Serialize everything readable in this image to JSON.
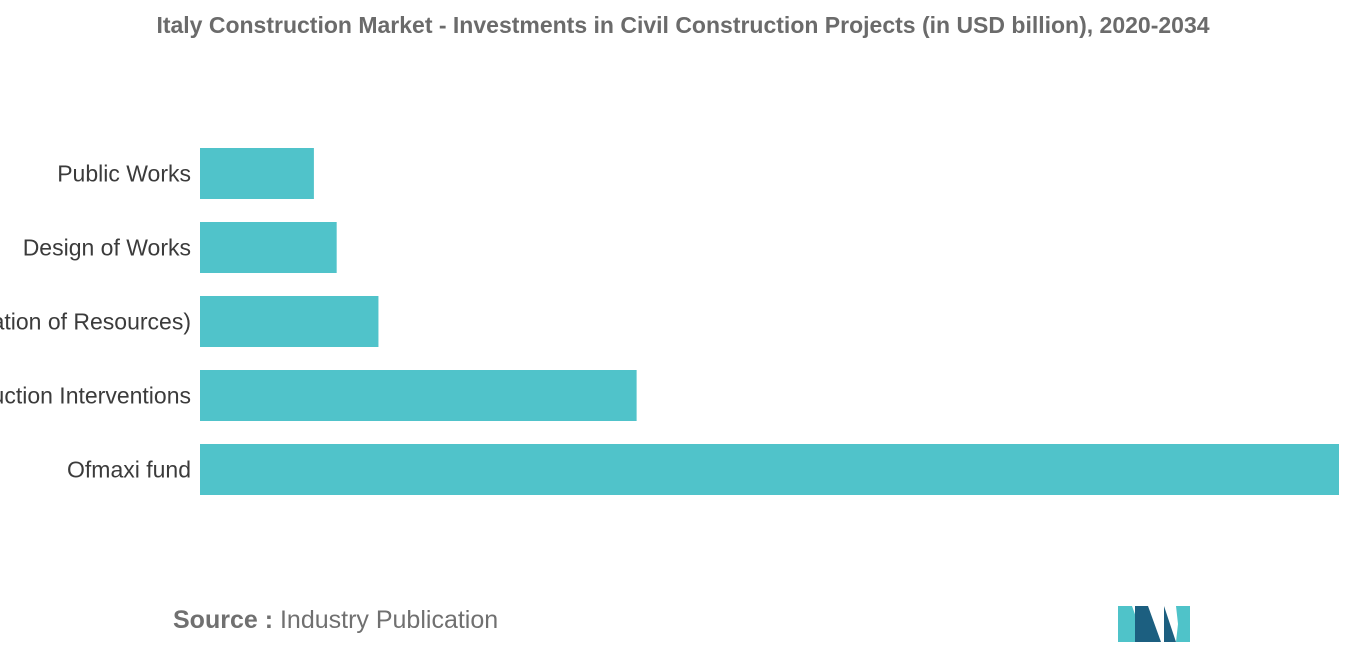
{
  "title": "Italy Construction Market - Investments in Civil Construction Projects (in USD billion), 2020-2034",
  "source": {
    "label": "Source :",
    "text": "Industry Publication"
  },
  "colors": {
    "bar": "#50c3ca",
    "logo_dark": "#1c5f80",
    "logo_light": "#4fc3c9"
  },
  "chart_data": {
    "type": "bar",
    "orientation": "horizontal",
    "title": "Italy Construction Market - Investments in Civil Construction Projects (in USD billion), 2020-2034",
    "categories": [
      "Public Works",
      "Design of Works",
      "Purchase (Allocation of Resources)",
      "Reconstruction Interventions",
      "Ofmaxi fund"
    ],
    "values": [
      0.6,
      0.72,
      0.94,
      2.3,
      6.0
    ],
    "xlim": [
      0,
      6.0
    ],
    "xlabel": "",
    "ylabel": "",
    "grid": false,
    "axis_ticks_visible": false
  }
}
